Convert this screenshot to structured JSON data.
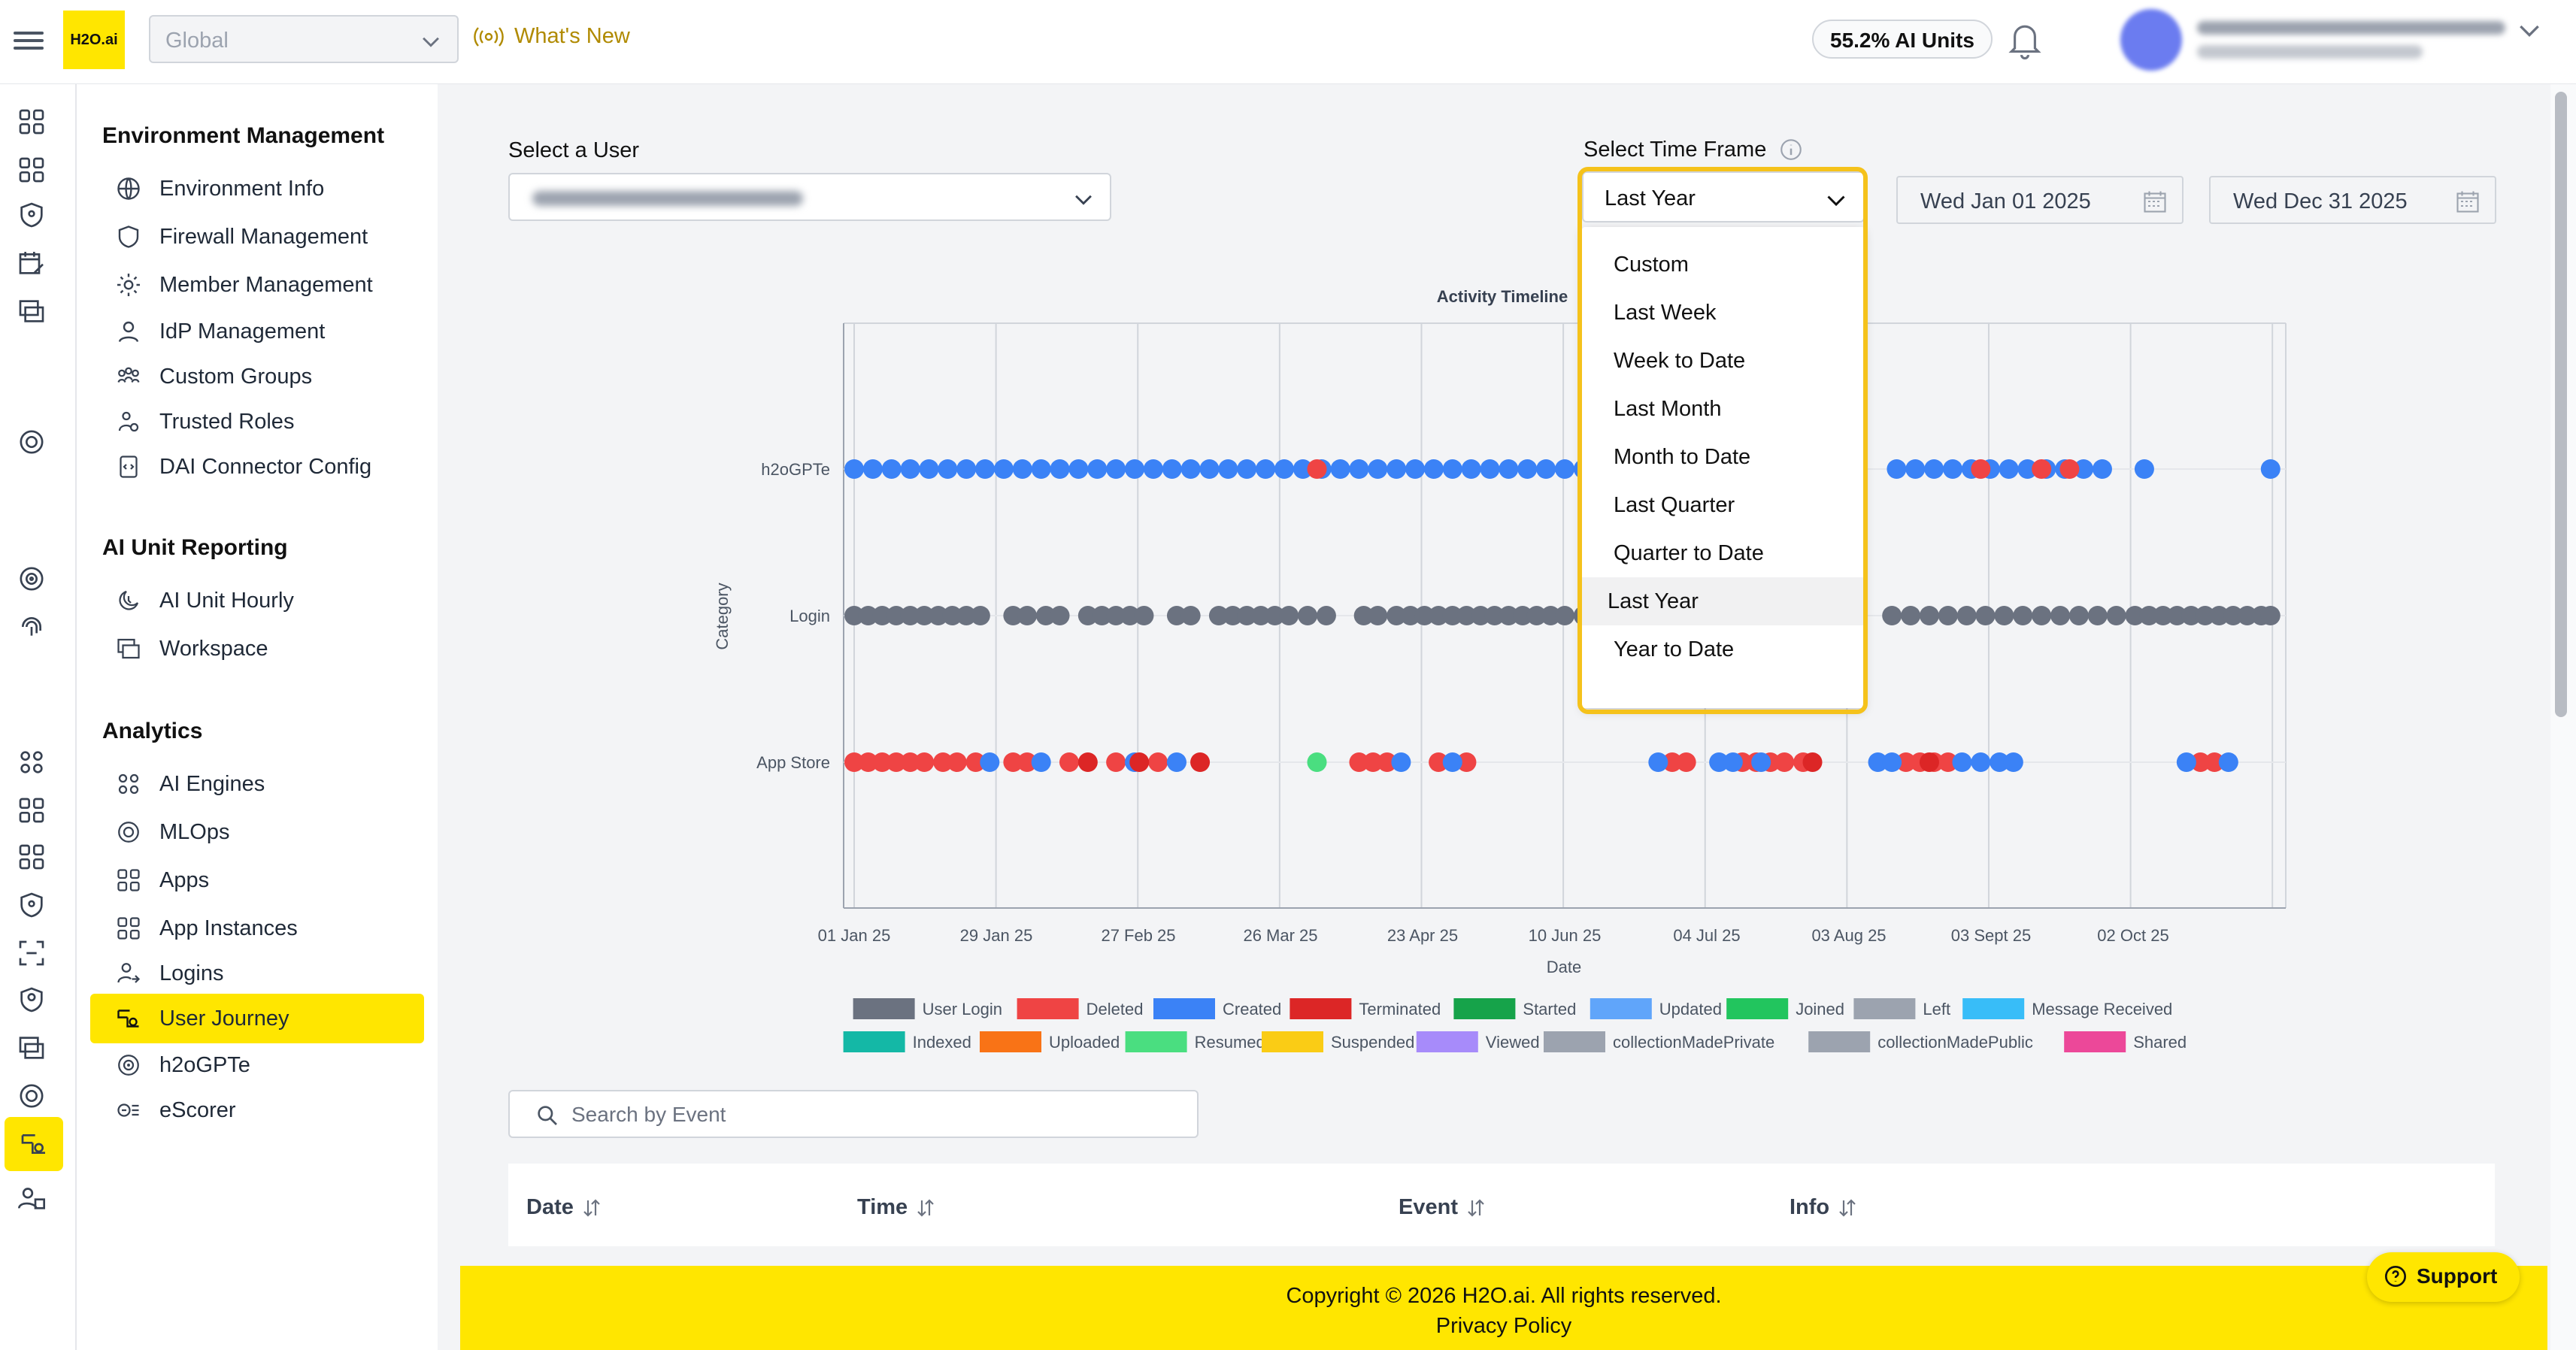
{
  "header": {
    "logo_text": "H2O.ai",
    "scope_value": "Global",
    "whats_new": "What's New",
    "ai_units": "55.2% AI Units"
  },
  "rail": {
    "icons": [
      "apps-icon",
      "grid-icon",
      "shield-icon",
      "calendar-edit-icon",
      "windows-icon",
      "mlops-icon",
      "target-icon",
      "fingerprint-icon",
      "engines-icon",
      "apps-icon",
      "grid-icon",
      "shield-icon",
      "scan-icon",
      "shield-user-icon",
      "windows-icon",
      "mlops-icon",
      "user-journey-icon",
      "user-group-icon"
    ]
  },
  "sidebar": {
    "sections": [
      {
        "title": "Environment Management",
        "items": [
          "Environment Info",
          "Firewall Management",
          "Member Management",
          "IdP Management",
          "Custom Groups",
          "Trusted Roles",
          "DAI Connector Config"
        ]
      },
      {
        "title": "AI Unit Reporting",
        "items": [
          "AI Unit Hourly",
          "Workspace"
        ]
      },
      {
        "title": "Analytics",
        "items": [
          "AI Engines",
          "MLOps",
          "Apps",
          "App Instances",
          "Logins",
          "User Journey",
          "h2oGPTe",
          "eScorer"
        ]
      }
    ],
    "active_item": "User Journey"
  },
  "filters": {
    "user_label": "Select a User",
    "timeframe_label": "Select Time Frame",
    "timeframe_value": "Last Year",
    "timeframe_options": [
      "Custom",
      "Last Week",
      "Week to Date",
      "Last Month",
      "Month to Date",
      "Last Quarter",
      "Quarter to Date",
      "Last Year",
      "Year to Date"
    ],
    "start_date": "Wed Jan 01 2025",
    "end_date": "Wed Dec 31 2025"
  },
  "chart_data": {
    "type": "scatter",
    "title": "Activity Timeline",
    "xlabel": "Date",
    "ylabel": "Category",
    "categories": [
      "h2oGPTe",
      "Login",
      "App Store"
    ],
    "x_ticks": [
      "01 Jan 25",
      "29 Jan 25",
      "27 Feb 25",
      "26 Mar 25",
      "23 Apr 25",
      "10 Jun 25",
      "04 Jul 25",
      "03 Aug 25",
      "03 Sept 25",
      "02 Oct 25"
    ],
    "x_range": [
      "2025-01-01",
      "2025-11-01"
    ],
    "grid": true,
    "legend_position": "bottom",
    "legend": [
      {
        "name": "User Login",
        "color": "#6b7280"
      },
      {
        "name": "Deleted",
        "color": "#ef4444"
      },
      {
        "name": "Created",
        "color": "#3b82f6"
      },
      {
        "name": "Terminated",
        "color": "#dc2626"
      },
      {
        "name": "Started",
        "color": "#16a34a"
      },
      {
        "name": "Updated",
        "color": "#60a5fa"
      },
      {
        "name": "Joined",
        "color": "#22c55e"
      },
      {
        "name": "Left",
        "color": "#9ca3af"
      },
      {
        "name": "Message Received",
        "color": "#38bdf8"
      },
      {
        "name": "Indexed",
        "color": "#14b8a6"
      },
      {
        "name": "Uploaded",
        "color": "#f97316"
      },
      {
        "name": "Resumed",
        "color": "#4ade80"
      },
      {
        "name": "Suspended",
        "color": "#facc15"
      },
      {
        "name": "Viewed",
        "color": "#a78bfa"
      },
      {
        "name": "collectionMadePrivate",
        "color": "#9ca3af"
      },
      {
        "name": "collectionMadePublic",
        "color": "#9ca3af"
      },
      {
        "name": "Shared",
        "color": "#ec4899"
      }
    ],
    "series": [
      {
        "category": "h2oGPTe",
        "event": "Created",
        "dates": [
          "2025-01-01",
          "2025-01-05",
          "2025-01-09",
          "2025-01-13",
          "2025-01-17",
          "2025-01-21",
          "2025-01-25",
          "2025-01-29",
          "2025-02-02",
          "2025-02-06",
          "2025-02-10",
          "2025-02-14",
          "2025-02-18",
          "2025-02-22",
          "2025-02-26",
          "2025-03-02",
          "2025-03-06",
          "2025-03-10",
          "2025-03-14",
          "2025-03-18",
          "2025-03-22",
          "2025-03-26",
          "2025-03-30",
          "2025-04-03",
          "2025-04-07",
          "2025-04-11",
          "2025-04-15",
          "2025-04-19",
          "2025-04-23",
          "2025-04-27",
          "2025-05-01",
          "2025-05-05",
          "2025-05-09",
          "2025-05-13",
          "2025-05-17",
          "2025-05-21",
          "2025-05-25",
          "2025-05-29",
          "2025-06-02",
          "2025-06-06",
          "2025-08-12",
          "2025-08-16",
          "2025-08-20",
          "2025-08-24",
          "2025-08-28",
          "2025-09-01",
          "2025-09-05",
          "2025-09-09",
          "2025-09-13",
          "2025-09-17",
          "2025-09-21",
          "2025-09-25",
          "2025-10-04",
          "2025-10-31"
        ]
      },
      {
        "category": "h2oGPTe",
        "event": "Deleted",
        "dates": [
          "2025-04-10",
          "2025-08-30",
          "2025-09-12",
          "2025-09-18"
        ]
      },
      {
        "category": "Login",
        "event": "User Login",
        "dates": [
          "2025-01-01",
          "2025-01-04",
          "2025-01-07",
          "2025-01-10",
          "2025-01-13",
          "2025-01-16",
          "2025-01-19",
          "2025-01-22",
          "2025-01-25",
          "2025-01-28",
          "2025-02-04",
          "2025-02-07",
          "2025-02-11",
          "2025-02-14",
          "2025-02-20",
          "2025-02-23",
          "2025-02-26",
          "2025-03-01",
          "2025-03-04",
          "2025-03-11",
          "2025-03-14",
          "2025-03-20",
          "2025-03-23",
          "2025-03-26",
          "2025-03-29",
          "2025-04-01",
          "2025-04-04",
          "2025-04-08",
          "2025-04-12",
          "2025-04-20",
          "2025-04-23",
          "2025-04-27",
          "2025-04-30",
          "2025-05-03",
          "2025-05-06",
          "2025-05-09",
          "2025-05-12",
          "2025-05-15",
          "2025-05-18",
          "2025-05-21",
          "2025-05-24",
          "2025-05-27",
          "2025-05-30",
          "2025-06-02",
          "2025-06-06",
          "2025-08-11",
          "2025-08-15",
          "2025-08-19",
          "2025-08-23",
          "2025-08-27",
          "2025-08-31",
          "2025-09-04",
          "2025-09-08",
          "2025-09-12",
          "2025-09-16",
          "2025-09-20",
          "2025-09-24",
          "2025-09-28",
          "2025-10-02",
          "2025-10-05",
          "2025-10-08",
          "2025-10-11",
          "2025-10-14",
          "2025-10-17",
          "2025-10-20",
          "2025-10-23",
          "2025-10-26",
          "2025-10-29",
          "2025-10-31"
        ]
      },
      {
        "category": "App Store",
        "event": "Deleted",
        "dates": [
          "2025-01-01",
          "2025-01-04",
          "2025-01-07",
          "2025-01-10",
          "2025-01-13",
          "2025-01-16",
          "2025-01-20",
          "2025-01-23",
          "2025-01-27",
          "2025-02-04",
          "2025-02-07",
          "2025-02-16",
          "2025-02-26",
          "2025-03-07",
          "2025-04-19",
          "2025-04-22",
          "2025-04-25",
          "2025-05-06",
          "2025-05-12",
          "2025-06-25",
          "2025-06-28",
          "2025-07-10",
          "2025-07-13",
          "2025-07-16",
          "2025-07-19",
          "2025-07-23",
          "2025-08-14",
          "2025-08-17",
          "2025-08-20",
          "2025-08-23",
          "2025-10-16",
          "2025-10-19"
        ]
      },
      {
        "category": "App Store",
        "event": "Created",
        "dates": [
          "2025-01-30",
          "2025-02-10",
          "2025-03-02",
          "2025-03-11",
          "2025-04-28",
          "2025-05-09",
          "2025-06-22",
          "2025-07-05",
          "2025-07-08",
          "2025-07-14",
          "2025-08-08",
          "2025-08-11",
          "2025-08-26",
          "2025-08-30",
          "2025-09-03",
          "2025-09-06",
          "2025-10-13",
          "2025-10-22"
        ]
      },
      {
        "category": "App Store",
        "event": "Terminated",
        "dates": [
          "2025-02-20",
          "2025-03-03",
          "2025-03-16",
          "2025-07-25",
          "2025-08-19"
        ]
      },
      {
        "category": "App Store",
        "event": "Resumed",
        "dates": [
          "2025-04-10"
        ]
      }
    ]
  },
  "search": {
    "placeholder": "Search by Event"
  },
  "table": {
    "columns": [
      "Date",
      "Time",
      "Event",
      "Info"
    ]
  },
  "footer": {
    "copyright": "Copyright © 2026 H2O.ai. All rights reserved.",
    "privacy": "Privacy Policy",
    "support": "Support"
  }
}
